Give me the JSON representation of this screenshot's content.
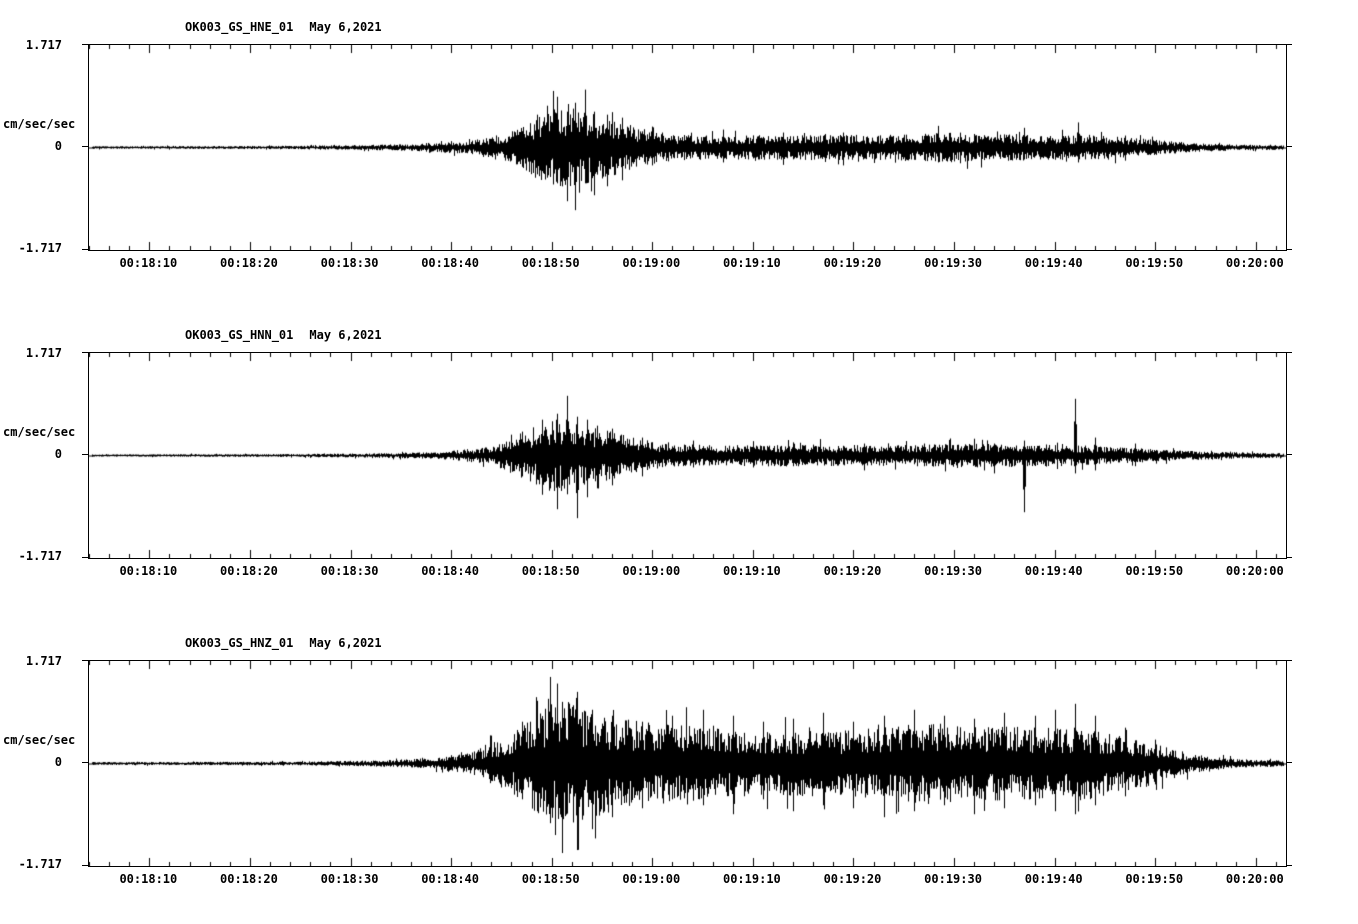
{
  "shared": {
    "ylabel": "cm/sec/sec",
    "y_max_label": "1.717",
    "y_zero_label": "0",
    "y_min_label": "-1.717",
    "colors": {
      "trace": "#000000",
      "background": "#ffffff",
      "text": "#000000"
    }
  },
  "panels": [
    {
      "station": "OK003_GS_HNE_01",
      "date": "May 6,2021"
    },
    {
      "station": "OK003_GS_HNN_01",
      "date": "May 6,2021"
    },
    {
      "station": "OK003_GS_HNZ_01",
      "date": "May 6,2021"
    }
  ],
  "chart_data": [
    {
      "type": "line",
      "subtype": "seismogram",
      "title": "OK003_GS_HNE_01",
      "date_label": "May 6,2021",
      "ylabel": "cm/sec/sec",
      "ylim": [
        -1.717,
        1.717
      ],
      "y_ticks": [
        1.717,
        0,
        -1.717
      ],
      "x_start": "00:18:04",
      "x_end": "00:20:03",
      "duration_sec": 119,
      "first_tick_offset_sec": 6,
      "tick_interval_sec": 10,
      "x_ticks": [
        "00:18:10",
        "00:18:20",
        "00:18:30",
        "00:18:40",
        "00:18:50",
        "00:19:00",
        "00:19:10",
        "00:19:20",
        "00:19:30",
        "00:19:40",
        "00:19:50",
        "00:20:00"
      ],
      "peak_amplitude": 1.05,
      "envelope": [
        [
          0,
          0.018
        ],
        [
          15,
          0.02
        ],
        [
          25,
          0.03
        ],
        [
          32,
          0.045
        ],
        [
          38,
          0.09
        ],
        [
          42,
          0.22
        ],
        [
          45,
          0.45
        ],
        [
          47,
          0.55
        ],
        [
          49,
          0.5
        ],
        [
          52,
          0.38
        ],
        [
          55,
          0.25
        ],
        [
          58,
          0.18
        ],
        [
          62,
          0.16
        ],
        [
          70,
          0.17
        ],
        [
          80,
          0.17
        ],
        [
          85,
          0.2
        ],
        [
          90,
          0.18
        ],
        [
          95,
          0.17
        ],
        [
          100,
          0.16
        ],
        [
          104,
          0.13
        ],
        [
          107,
          0.09
        ],
        [
          110,
          0.06
        ],
        [
          114,
          0.04
        ],
        [
          119,
          0.03
        ]
      ],
      "spikes": [
        [
          44.5,
          0.55,
          0.45
        ],
        [
          45.5,
          0.7,
          0.5
        ],
        [
          46.5,
          0.85,
          0.6
        ],
        [
          47.5,
          0.6,
          0.9
        ],
        [
          48.3,
          0.75,
          1.05
        ],
        [
          49.3,
          0.97,
          0.6
        ],
        [
          50.2,
          0.6,
          0.8
        ],
        [
          51.5,
          0.55,
          0.65
        ],
        [
          53,
          0.5,
          0.55
        ],
        [
          56,
          0.35,
          0.3
        ],
        [
          63,
          0.3,
          0.25
        ],
        [
          69,
          0.25,
          0.28
        ],
        [
          75,
          0.25,
          0.3
        ],
        [
          84.4,
          0.3,
          0.25
        ],
        [
          93,
          0.33,
          0.2
        ],
        [
          98.3,
          0.42,
          0.25
        ],
        [
          103,
          0.2,
          0.22
        ]
      ]
    },
    {
      "type": "line",
      "subtype": "seismogram",
      "title": "OK003_GS_HNN_01",
      "date_label": "May 6,2021",
      "ylabel": "cm/sec/sec",
      "ylim": [
        -1.717,
        1.717
      ],
      "y_ticks": [
        1.717,
        0,
        -1.717
      ],
      "x_start": "00:18:04",
      "x_end": "00:20:03",
      "duration_sec": 119,
      "first_tick_offset_sec": 6,
      "tick_interval_sec": 10,
      "x_ticks": [
        "00:18:10",
        "00:18:20",
        "00:18:30",
        "00:18:40",
        "00:18:50",
        "00:19:00",
        "00:19:10",
        "00:19:20",
        "00:19:30",
        "00:19:40",
        "00:19:50",
        "00:20:00"
      ],
      "peak_amplitude": 1.05,
      "envelope": [
        [
          0,
          0.015
        ],
        [
          20,
          0.02
        ],
        [
          28,
          0.03
        ],
        [
          35,
          0.05
        ],
        [
          40,
          0.12
        ],
        [
          43,
          0.3
        ],
        [
          46,
          0.5
        ],
        [
          48,
          0.45
        ],
        [
          51,
          0.35
        ],
        [
          54,
          0.25
        ],
        [
          57,
          0.16
        ],
        [
          62,
          0.14
        ],
        [
          70,
          0.15
        ],
        [
          80,
          0.14
        ],
        [
          88,
          0.16
        ],
        [
          95,
          0.15
        ],
        [
          100,
          0.13
        ],
        [
          104,
          0.1
        ],
        [
          108,
          0.07
        ],
        [
          112,
          0.05
        ],
        [
          119,
          0.03
        ]
      ],
      "spikes": [
        [
          43,
          0.4,
          0.35
        ],
        [
          45,
          0.6,
          0.5
        ],
        [
          46.5,
          0.7,
          0.9
        ],
        [
          47.5,
          1.0,
          0.65
        ],
        [
          48.5,
          0.65,
          1.05
        ],
        [
          49.5,
          0.6,
          0.7
        ],
        [
          50.5,
          0.5,
          0.55
        ],
        [
          52,
          0.45,
          0.5
        ],
        [
          55,
          0.3,
          0.35
        ],
        [
          60,
          0.25,
          0.2
        ],
        [
          66,
          0.24,
          0.2
        ],
        [
          70,
          0.22,
          0.18
        ],
        [
          77,
          0.2,
          0.25
        ],
        [
          83,
          0.2,
          0.18
        ],
        [
          90,
          0.2,
          0.3
        ],
        [
          93,
          0.25,
          0.95
        ],
        [
          98,
          0.95,
          0.3
        ],
        [
          100,
          0.3,
          0.25
        ],
        [
          104,
          0.2,
          0.18
        ]
      ]
    },
    {
      "type": "line",
      "subtype": "seismogram",
      "title": "OK003_GS_HNZ_01",
      "date_label": "May 6,2021",
      "ylabel": "cm/sec/sec",
      "ylim": [
        -1.717,
        1.717
      ],
      "y_ticks": [
        1.717,
        0,
        -1.717
      ],
      "x_start": "00:18:04",
      "x_end": "00:20:03",
      "duration_sec": 119,
      "first_tick_offset_sec": 6,
      "tick_interval_sec": 10,
      "x_ticks": [
        "00:18:10",
        "00:18:20",
        "00:18:30",
        "00:18:40",
        "00:18:50",
        "00:19:00",
        "00:19:10",
        "00:19:20",
        "00:19:30",
        "00:19:40",
        "00:19:50",
        "00:20:00"
      ],
      "peak_amplitude": 1.5,
      "envelope": [
        [
          0,
          0.02
        ],
        [
          20,
          0.025
        ],
        [
          28,
          0.04
        ],
        [
          34,
          0.07
        ],
        [
          38,
          0.15
        ],
        [
          42,
          0.4
        ],
        [
          45,
          0.75
        ],
        [
          47,
          0.85
        ],
        [
          49,
          0.8
        ],
        [
          52,
          0.62
        ],
        [
          56,
          0.55
        ],
        [
          60,
          0.5
        ],
        [
          64,
          0.45
        ],
        [
          68,
          0.42
        ],
        [
          72,
          0.45
        ],
        [
          76,
          0.45
        ],
        [
          80,
          0.5
        ],
        [
          84,
          0.55
        ],
        [
          88,
          0.5
        ],
        [
          92,
          0.5
        ],
        [
          96,
          0.48
        ],
        [
          99,
          0.5
        ],
        [
          102,
          0.4
        ],
        [
          105,
          0.3
        ],
        [
          108,
          0.18
        ],
        [
          111,
          0.1
        ],
        [
          114,
          0.06
        ],
        [
          119,
          0.04
        ]
      ],
      "spikes": [
        [
          43,
          0.7,
          0.6
        ],
        [
          44.5,
          1.05,
          0.8
        ],
        [
          45.8,
          1.45,
          1.0
        ],
        [
          47,
          1.0,
          1.5
        ],
        [
          48.5,
          1.2,
          1.45
        ],
        [
          50,
          0.9,
          1.1
        ],
        [
          52,
          0.8,
          0.9
        ],
        [
          55,
          0.7,
          0.75
        ],
        [
          58,
          0.8,
          0.6
        ],
        [
          61,
          0.9,
          0.7
        ],
        [
          64,
          0.8,
          0.85
        ],
        [
          67,
          0.7,
          0.6
        ],
        [
          70,
          0.75,
          0.8
        ],
        [
          73,
          0.85,
          0.7
        ],
        [
          76,
          0.7,
          0.75
        ],
        [
          79,
          0.8,
          0.9
        ],
        [
          82,
          0.9,
          0.8
        ],
        [
          85,
          0.8,
          0.7
        ],
        [
          88,
          0.75,
          0.85
        ],
        [
          91,
          0.85,
          0.75
        ],
        [
          94,
          0.8,
          0.7
        ],
        [
          96,
          0.9,
          0.8
        ],
        [
          98,
          1.0,
          0.85
        ],
        [
          100,
          0.8,
          0.7
        ],
        [
          103,
          0.6,
          0.55
        ],
        [
          106,
          0.4,
          0.35
        ]
      ]
    }
  ]
}
